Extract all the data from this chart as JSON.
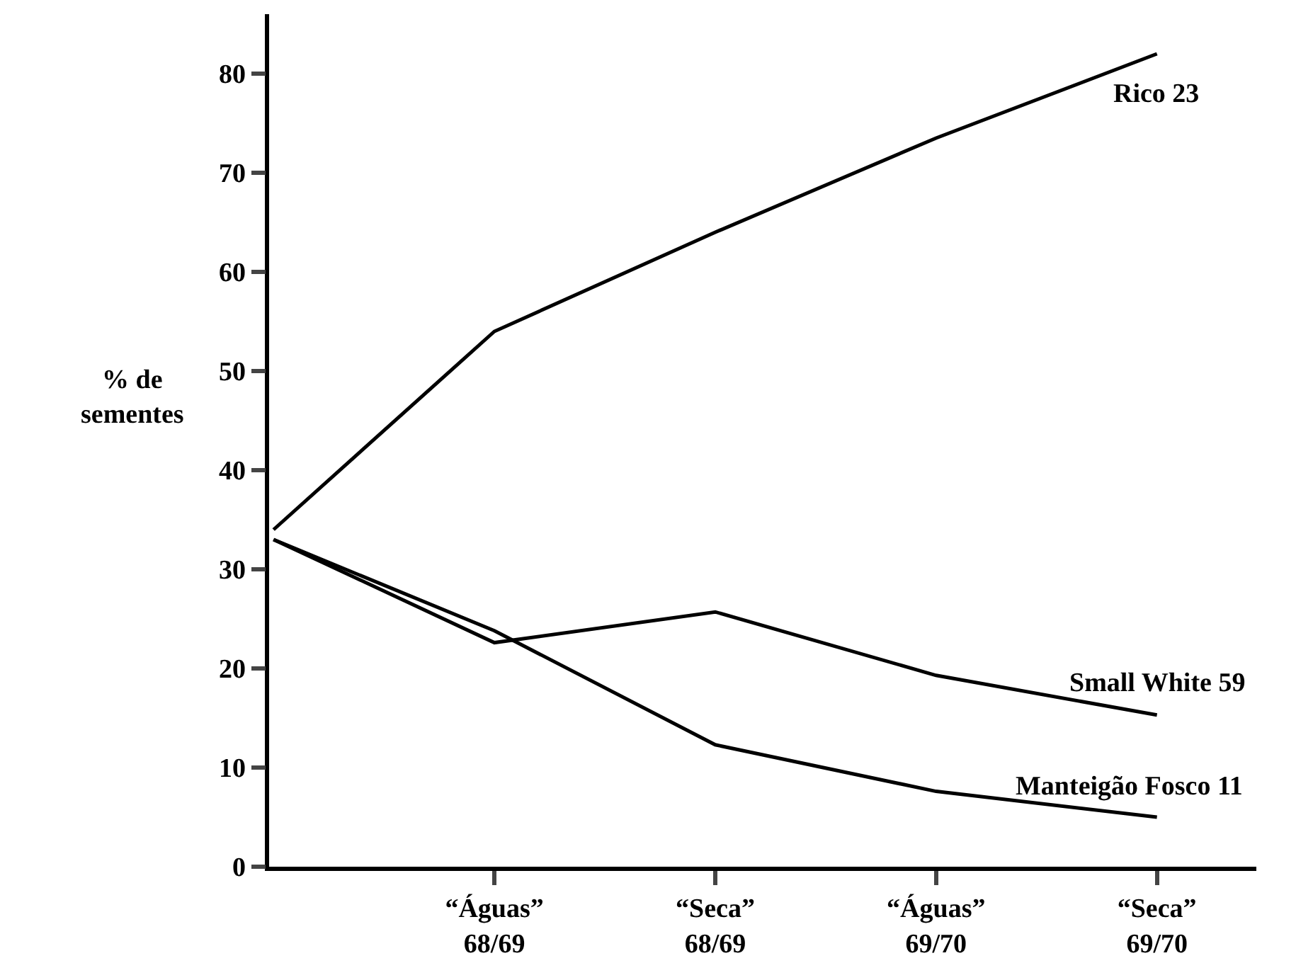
{
  "chart_data": {
    "type": "line",
    "ylabel": "% de sementes",
    "categories": [
      null,
      "“Águas” 68/69",
      "“Seca” 68/69",
      "“Águas” 69/70",
      "“Seca” 69/70"
    ],
    "series": [
      {
        "name": "Rico 23",
        "color": "#000000",
        "values": [
          34,
          54,
          64,
          73.5,
          82
        ]
      },
      {
        "name": "Small White 59",
        "color": "#000000",
        "values": [
          33,
          22.6,
          25.7,
          19.3,
          15.3
        ]
      },
      {
        "name": "Manteigão Fosco 11",
        "color": "#000000",
        "values": [
          33,
          23.8,
          12.3,
          7.6,
          5
        ]
      }
    ],
    "ylim": [
      0,
      86
    ],
    "yticks": [
      0,
      10,
      20,
      30,
      40,
      50,
      60,
      70,
      80
    ],
    "legend": false,
    "marker": "none",
    "line_style": "solid"
  }
}
